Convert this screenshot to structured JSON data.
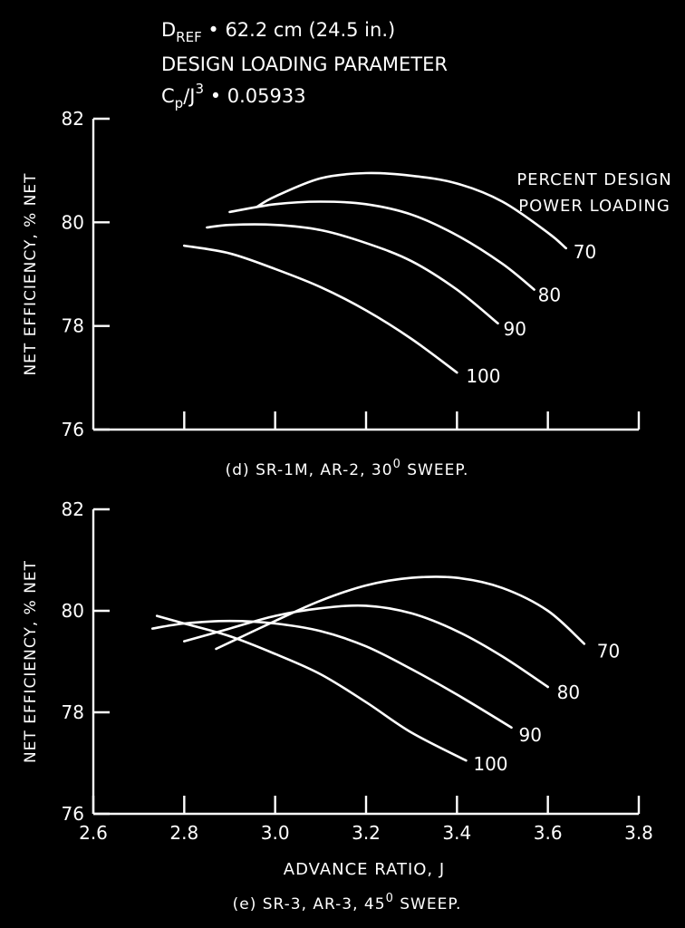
{
  "header": {
    "dref_prefix": "D",
    "dref_sub": "REF",
    "dref_value": " • 62.2 cm (24.5 in.)",
    "line2": "DESIGN LOADING PARAMETER",
    "cp_c": "C",
    "cp_sub": "p",
    "cp_mid": "/J",
    "cp_sup": "3",
    "cp_value": " • 0.05933"
  },
  "colors": {
    "background": "#000000",
    "foreground": "#ffffff"
  },
  "chart_data": [
    {
      "type": "line",
      "panel": "d",
      "caption": "(d) SR-1M, AR-2, 30",
      "caption_sup": "0",
      "caption_tail": " SWEEP.",
      "ylabel": "NET EFFICIENCY, % NET",
      "xlabel": "",
      "ylim": [
        76,
        82
      ],
      "xlim": [
        2.6,
        3.8
      ],
      "yticks": [
        "76",
        "78",
        "80",
        "82"
      ],
      "xtick_values": [
        2.8,
        3.0,
        3.2,
        3.4,
        3.6,
        3.8
      ],
      "xtick_labels": [],
      "grid": false,
      "legend_title": [
        "PERCENT DESIGN",
        "POWER LOADING"
      ],
      "series": [
        {
          "name": "70",
          "x": [
            2.96,
            3.0,
            3.1,
            3.2,
            3.3,
            3.4,
            3.5,
            3.6,
            3.64
          ],
          "y": [
            80.3,
            80.5,
            80.85,
            80.95,
            80.9,
            80.75,
            80.4,
            79.8,
            79.5
          ]
        },
        {
          "name": "80",
          "x": [
            2.9,
            3.0,
            3.1,
            3.2,
            3.3,
            3.4,
            3.5,
            3.57
          ],
          "y": [
            80.2,
            80.35,
            80.4,
            80.35,
            80.15,
            79.75,
            79.2,
            78.7
          ]
        },
        {
          "name": "90",
          "x": [
            2.85,
            2.9,
            3.0,
            3.1,
            3.2,
            3.3,
            3.4,
            3.49
          ],
          "y": [
            79.9,
            79.95,
            79.95,
            79.85,
            79.6,
            79.25,
            78.7,
            78.05
          ]
        },
        {
          "name": "100",
          "x": [
            2.8,
            2.9,
            3.0,
            3.1,
            3.2,
            3.3,
            3.4
          ],
          "y": [
            79.55,
            79.4,
            79.1,
            78.75,
            78.3,
            77.75,
            77.1
          ]
        }
      ]
    },
    {
      "type": "line",
      "panel": "e",
      "caption": "(e) SR-3, AR-3, 45",
      "caption_sup": "0",
      "caption_tail": " SWEEP.",
      "ylabel": "NET EFFICIENCY, % NET",
      "xlabel": "ADVANCE RATIO, J",
      "ylim": [
        76,
        82
      ],
      "xlim": [
        2.6,
        3.8
      ],
      "yticks": [
        "76",
        "78",
        "80",
        "82"
      ],
      "xtick_values": [
        2.6,
        2.8,
        3.0,
        3.2,
        3.4,
        3.6,
        3.8
      ],
      "xtick_labels": [
        "2.6",
        "2.8",
        "3.0",
        "3.2",
        "3.4",
        "3.6",
        "3.8"
      ],
      "grid": false,
      "series": [
        {
          "name": "70",
          "x": [
            2.87,
            3.0,
            3.1,
            3.2,
            3.3,
            3.4,
            3.5,
            3.6,
            3.68
          ],
          "y": [
            79.25,
            79.8,
            80.2,
            80.5,
            80.65,
            80.65,
            80.45,
            80.0,
            79.35
          ]
        },
        {
          "name": "80",
          "x": [
            2.8,
            2.9,
            3.0,
            3.1,
            3.2,
            3.3,
            3.4,
            3.5,
            3.6
          ],
          "y": [
            79.4,
            79.65,
            79.9,
            80.05,
            80.1,
            79.95,
            79.6,
            79.1,
            78.5
          ]
        },
        {
          "name": "90",
          "x": [
            2.73,
            2.8,
            2.9,
            3.0,
            3.1,
            3.2,
            3.3,
            3.4,
            3.52
          ],
          "y": [
            79.65,
            79.75,
            79.8,
            79.75,
            79.6,
            79.3,
            78.85,
            78.35,
            77.7
          ]
        },
        {
          "name": "100",
          "x": [
            2.74,
            2.8,
            2.9,
            3.0,
            3.1,
            3.2,
            3.3,
            3.42
          ],
          "y": [
            79.9,
            79.75,
            79.5,
            79.15,
            78.75,
            78.2,
            77.6,
            77.05
          ]
        }
      ]
    }
  ]
}
